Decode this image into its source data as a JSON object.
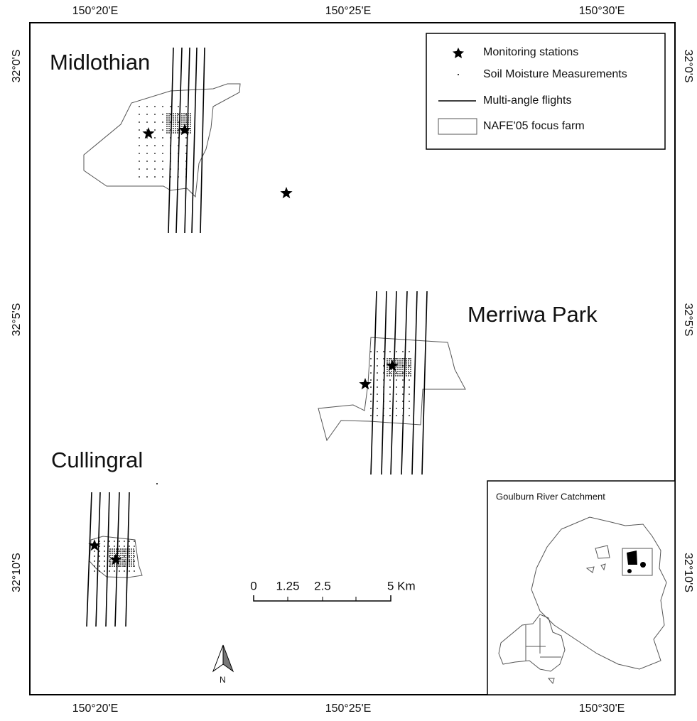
{
  "map": {
    "lon_labels": [
      "150°20'E",
      "150°25'E",
      "150°30'E"
    ],
    "lat_labels": [
      "32°0'S",
      "32°5'S",
      "32°10'S"
    ],
    "places": [
      "Midlothian",
      "Merriwa Park",
      "Cullingral"
    ],
    "legend": [
      "Monitoring stations",
      "Soil Moisture Measurements",
      "Multi-angle flights",
      "NAFE'05 focus farm"
    ],
    "scale_labels": [
      "0",
      "1.25",
      "2.5",
      "5 Km"
    ],
    "north": "N",
    "inset_title": "Goulburn River Catchment"
  }
}
